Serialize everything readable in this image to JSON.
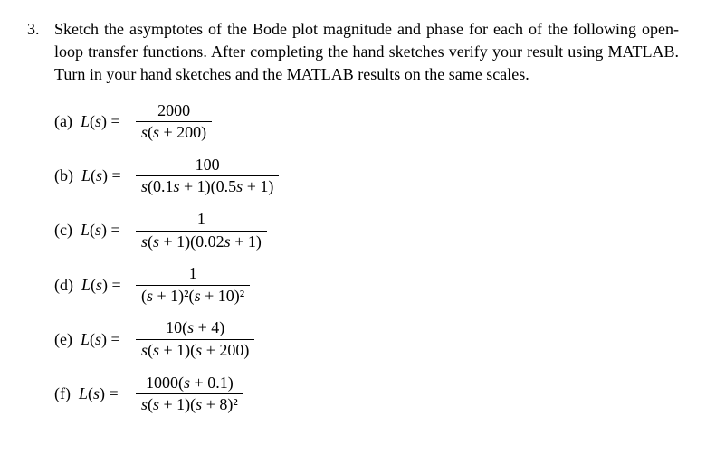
{
  "problem": {
    "number": "3.",
    "text": "Sketch the asymptotes of the Bode plot magnitude and phase for each of the following open-loop transfer functions. After completing the hand sketches verify your result using MATLAB. Turn in your hand sketches and the MATLAB results on the same scales."
  },
  "lhs_prefix": "L(s) = ",
  "parts": [
    {
      "label": "(a)",
      "numerator": "2000",
      "denominator": "s(s + 200)"
    },
    {
      "label": "(b)",
      "numerator": "100",
      "denominator": "s(0.1s + 1)(0.5s + 1)"
    },
    {
      "label": "(c)",
      "numerator": "1",
      "denominator": "s(s + 1)(0.02s + 1)"
    },
    {
      "label": "(d)",
      "numerator": "1",
      "denominator": "(s + 1)²(s + 10)²"
    },
    {
      "label": "(e)",
      "numerator": "10(s + 4)",
      "denominator": "s(s + 1)(s + 200)"
    },
    {
      "label": "(f)",
      "numerator": "1000(s + 0.1)",
      "denominator": "s(s + 1)(s + 8)²"
    }
  ],
  "style": {
    "font_family": "Times New Roman",
    "font_size_pt": 14,
    "text_color": "#000000",
    "background_color": "#ffffff",
    "line_color": "#000000"
  }
}
